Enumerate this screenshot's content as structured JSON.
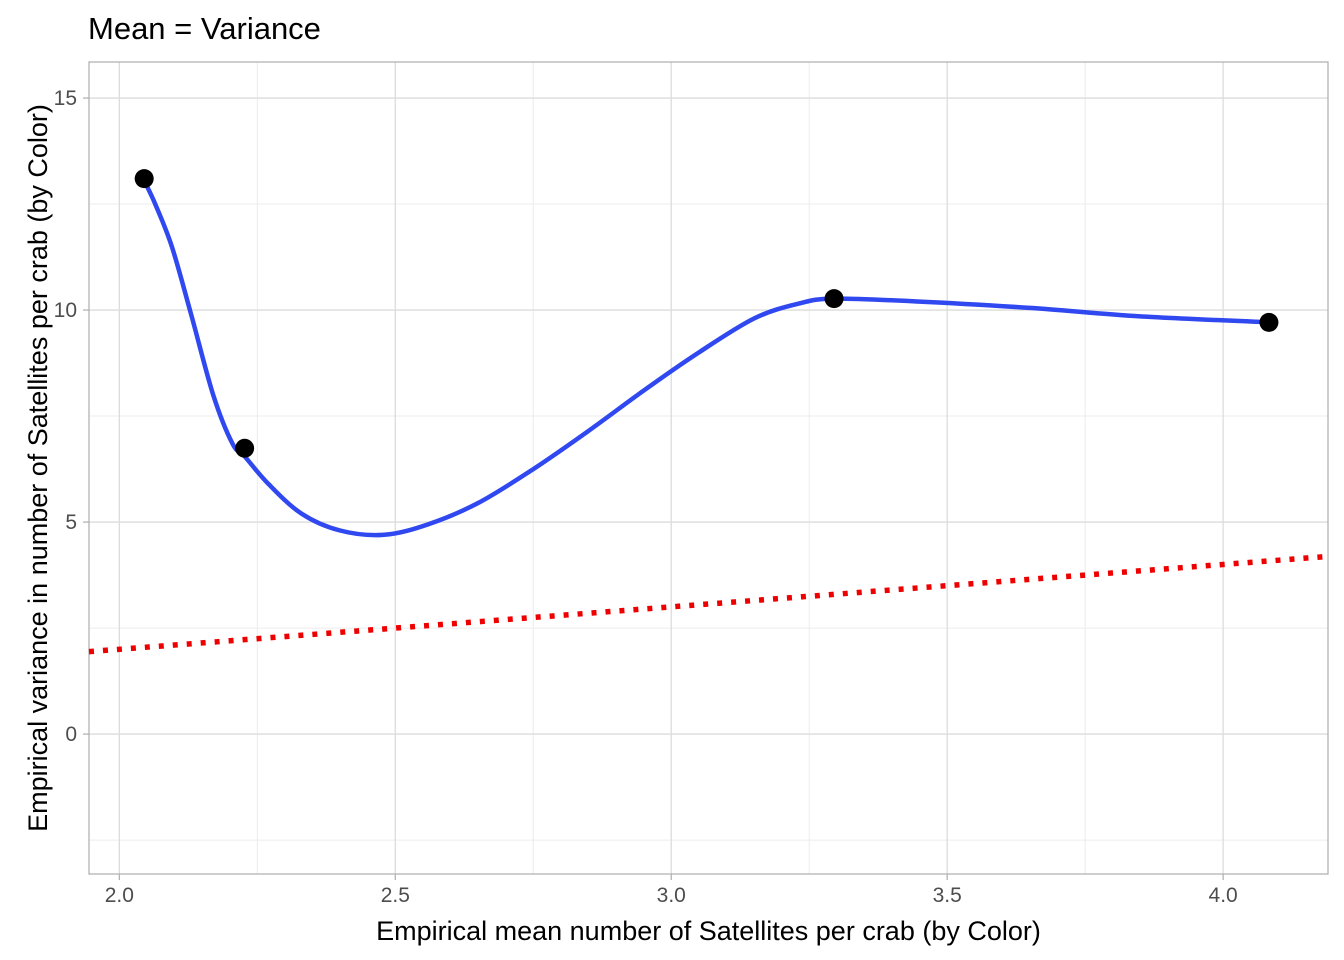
{
  "chart_data": {
    "type": "scatter",
    "title": "Mean = Variance",
    "xlabel": "Empirical mean number of Satellites per crab (by Color)",
    "ylabel": "Empirical variance in number of Satellites per crab (by Color)",
    "xlim": [
      1.945,
      4.19
    ],
    "ylim": [
      -3.3,
      15.85
    ],
    "x_ticks": [
      2.0,
      2.5,
      3.0,
      3.5,
      4.0
    ],
    "x_tick_labels": [
      "2.0",
      "2.5",
      "3.0",
      "3.5",
      "4.0"
    ],
    "y_ticks": [
      0,
      5,
      10,
      15
    ],
    "y_tick_labels": [
      "0",
      "5",
      "10",
      "15"
    ],
    "grid": true,
    "points": {
      "x": [
        2.045,
        2.227,
        3.295,
        4.083
      ],
      "y": [
        13.1,
        6.74,
        10.27,
        9.71
      ],
      "color": "#000000"
    },
    "smooth": {
      "x": [
        2.045,
        2.065,
        2.095,
        2.13,
        2.17,
        2.205,
        2.227,
        2.27,
        2.33,
        2.4,
        2.48,
        2.56,
        2.65,
        2.75,
        2.85,
        2.95,
        3.05,
        3.15,
        3.23,
        3.295,
        3.45,
        3.65,
        3.85,
        4.083
      ],
      "y": [
        13.05,
        12.5,
        11.5,
        9.9,
        8.0,
        6.85,
        6.55,
        5.9,
        5.2,
        4.8,
        4.7,
        4.95,
        5.45,
        6.25,
        7.15,
        8.1,
        9.0,
        9.8,
        10.15,
        10.27,
        10.2,
        10.05,
        9.85,
        9.71
      ],
      "color": "#3048f0"
    },
    "reference_line": {
      "slope": 1,
      "intercept": 0,
      "style": "dotted",
      "color": "#ee0000"
    }
  }
}
